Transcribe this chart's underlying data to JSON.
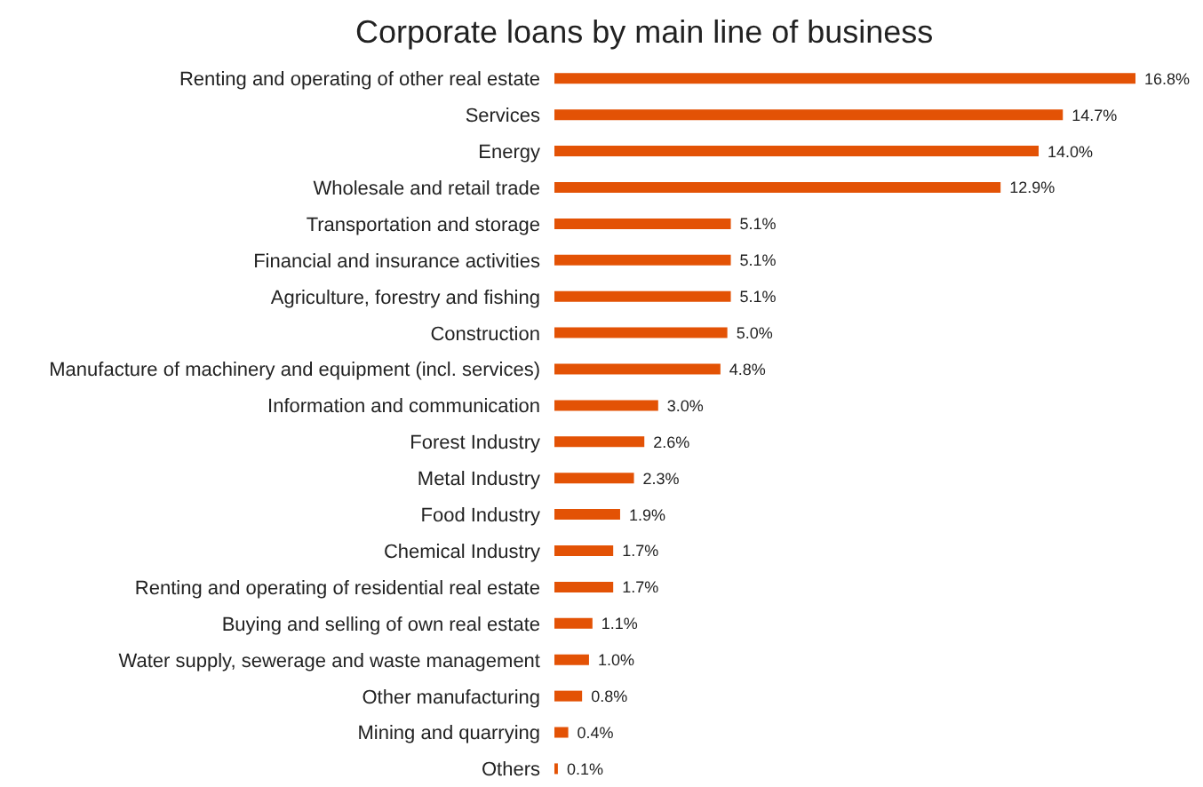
{
  "chart_data": {
    "type": "bar",
    "orientation": "horizontal",
    "title": "Corporate loans by main line of business",
    "categories": [
      "Renting and operating of other real estate",
      "Services",
      "Energy",
      "Wholesale and retail trade",
      "Transportation and storage",
      "Financial and insurance activities",
      "Agriculture, forestry and fishing",
      "Construction",
      "Manufacture of machinery and equipment (incl. services)",
      "Information and communication",
      "Forest Industry",
      "Metal Industry",
      "Food Industry",
      "Chemical Industry",
      "Renting and operating of residential real estate",
      "Buying and selling of own real estate",
      "Water supply, sewerage and waste management",
      "Other manufacturing",
      "Mining and quarrying",
      "Others"
    ],
    "values": [
      16.8,
      14.7,
      14.0,
      12.9,
      5.1,
      5.1,
      5.1,
      5.0,
      4.8,
      3.0,
      2.6,
      2.3,
      1.9,
      1.7,
      1.7,
      1.1,
      1.0,
      0.8,
      0.4,
      0.1
    ],
    "value_labels": [
      "16.8%",
      "14.7%",
      "14.0%",
      "12.9%",
      "5.1%",
      "5.1%",
      "5.1%",
      "5.0%",
      "4.8%",
      "3.0%",
      "2.6%",
      "2.3%",
      "1.9%",
      "1.7%",
      "1.7%",
      "1.1%",
      "1.0%",
      "0.8%",
      "0.4%",
      "0.1%"
    ],
    "color": "#e35205",
    "grid": false,
    "legend": false
  }
}
